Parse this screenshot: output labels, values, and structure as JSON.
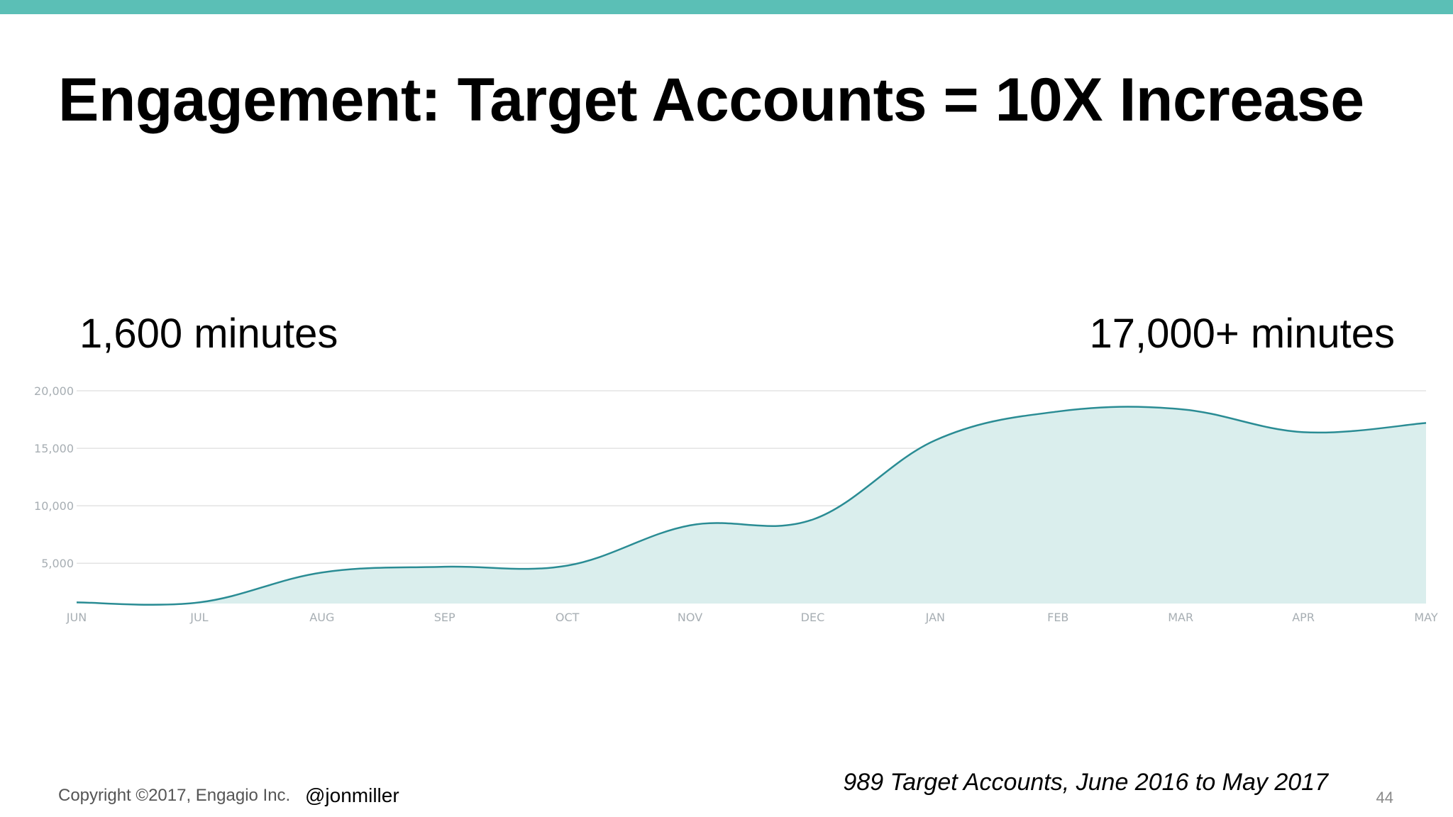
{
  "title": "Engagement: Target Accounts = 10X Increase",
  "callouts": {
    "left": "1,600 minutes",
    "right": "17,000+ minutes"
  },
  "footnote": "989 Target Accounts, June 2016 to May 2017",
  "footer": {
    "copyright": "Copyright ©2017, Engagio Inc.",
    "handle": "@jonmiller",
    "page": "44"
  },
  "colors": {
    "top_bar": "#5bbfb6",
    "line": "#2a8c94",
    "area": "#daeeed",
    "grid": "#e3e3e3"
  },
  "chart_data": {
    "type": "area",
    "title": "",
    "xlabel": "",
    "ylabel": "",
    "categories": [
      "JUN",
      "JUL",
      "AUG",
      "SEP",
      "OCT",
      "NOV",
      "DEC",
      "JAN",
      "FEB",
      "MAR",
      "APR",
      "MAY"
    ],
    "values": [
      1600,
      1600,
      4200,
      4700,
      4800,
      8300,
      8800,
      15700,
      18200,
      18400,
      16400,
      17200
    ],
    "y_ticks": [
      "5,000",
      "10,000",
      "15,000",
      "20,000"
    ],
    "y_tick_values": [
      5000,
      10000,
      15000,
      20000
    ],
    "ylim": [
      1500,
      20000
    ],
    "grid": true
  }
}
